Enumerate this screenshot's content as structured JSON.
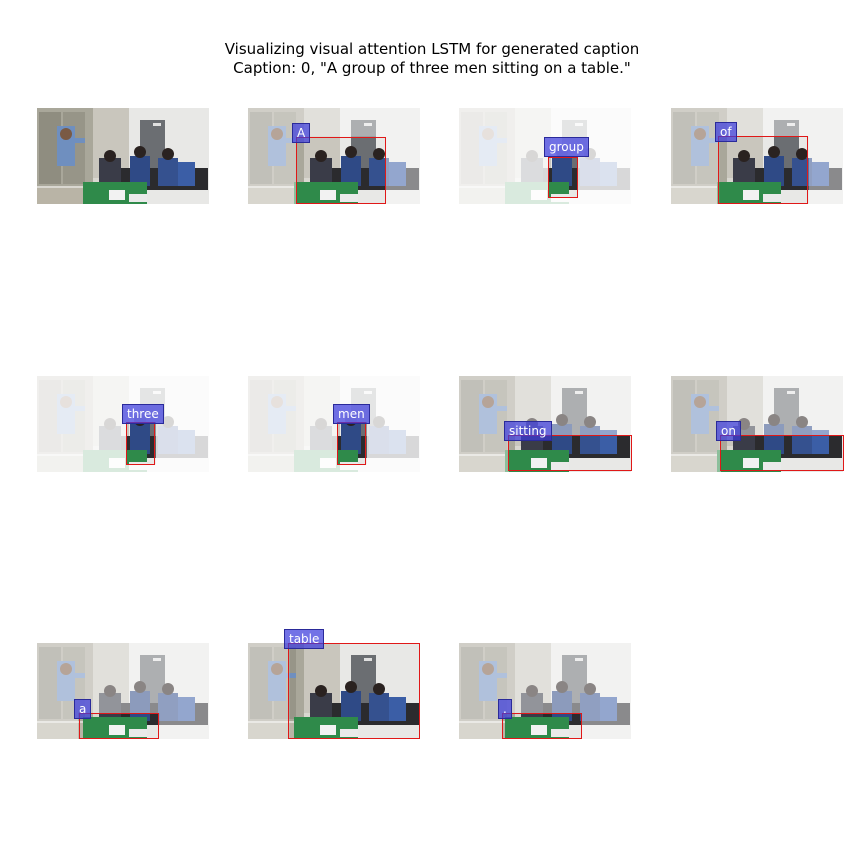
{
  "title": "Visualizing visual attention LSTM for generated caption",
  "caption_line": "Caption: 0, \"A group of three men sitting on a table.\"",
  "colors": {
    "box": "#e01818",
    "label_bg": "#3c3cdc",
    "label_text": "#ffffff"
  },
  "panels": [
    {
      "id": "original",
      "word": ""
    },
    {
      "id": "w1",
      "word": "A"
    },
    {
      "id": "w2",
      "word": "group"
    },
    {
      "id": "w3",
      "word": "of"
    },
    {
      "id": "w4",
      "word": "three"
    },
    {
      "id": "w5",
      "word": "men"
    },
    {
      "id": "w6",
      "word": "sitting"
    },
    {
      "id": "w7",
      "word": "on"
    },
    {
      "id": "w8",
      "word": "a"
    },
    {
      "id": "w9",
      "word": "table"
    },
    {
      "id": "w10",
      "word": "."
    }
  ]
}
